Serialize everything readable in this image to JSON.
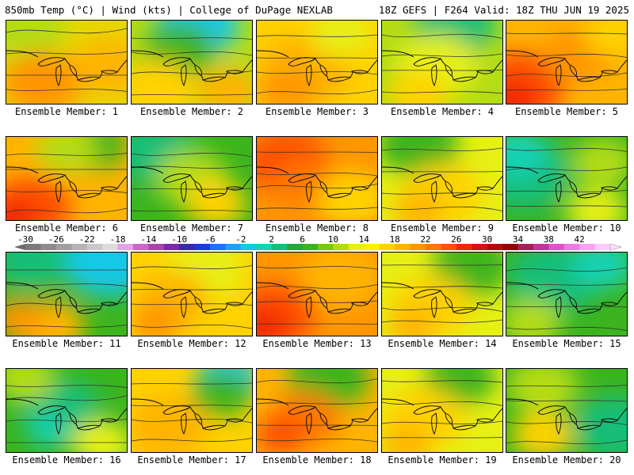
{
  "header": {
    "left": "850mb Temp (°C) | Wind (kts) | College of DuPage NEXLAB",
    "right": "18Z GEFS | F264 Valid: 18Z THU JUN 19 2025"
  },
  "colorbar": {
    "ticks": [
      "-30",
      "-26",
      "-22",
      "-18",
      "-14",
      "-10",
      "-6",
      "-2",
      "2",
      "6",
      "10",
      "14",
      "18",
      "22",
      "26",
      "30",
      "34",
      "38",
      "42"
    ],
    "colors": [
      "#7a7a7a",
      "#8c8c8c",
      "#a0a0a0",
      "#b4b4b4",
      "#c8c8c8",
      "#dcdcdc",
      "#e6a0e6",
      "#cc66cc",
      "#aa44aa",
      "#7a2aa8",
      "#3b2aa8",
      "#1e3cd2",
      "#2070ff",
      "#1ea0ff",
      "#14c8e6",
      "#14d2b4",
      "#14be78",
      "#1eaa3c",
      "#3cb41e",
      "#78c814",
      "#b4dc14",
      "#e6f014",
      "#fff000",
      "#ffd200",
      "#ffb400",
      "#ff9600",
      "#ff7800",
      "#ff5000",
      "#f02800",
      "#d21414",
      "#b40a0a",
      "#960000",
      "#aa1e5a",
      "#c83296",
      "#e650c8",
      "#f078e6",
      "#ffa0f5",
      "#ffc8ff"
    ]
  },
  "members": [
    {
      "label": "Ensemble Member: 1"
    },
    {
      "label": "Ensemble Member: 2"
    },
    {
      "label": "Ensemble Member: 3"
    },
    {
      "label": "Ensemble Member: 4"
    },
    {
      "label": "Ensemble Member: 5"
    },
    {
      "label": "Ensemble Member: 6"
    },
    {
      "label": "Ensemble Member: 7"
    },
    {
      "label": "Ensemble Member: 8"
    },
    {
      "label": "Ensemble Member: 9"
    },
    {
      "label": "Ensemble Member: 10"
    },
    {
      "label": "Ensemble Member: 11"
    },
    {
      "label": "Ensemble Member: 12"
    },
    {
      "label": "Ensemble Member: 13"
    },
    {
      "label": "Ensemble Member: 14"
    },
    {
      "label": "Ensemble Member: 15"
    },
    {
      "label": "Ensemble Member: 16"
    },
    {
      "label": "Ensemble Member: 17"
    },
    {
      "label": "Ensemble Member: 18"
    },
    {
      "label": "Ensemble Member: 19"
    },
    {
      "label": "Ensemble Member: 20"
    }
  ]
}
